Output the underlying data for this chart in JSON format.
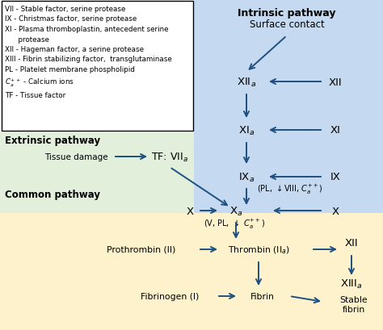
{
  "fig_width": 4.74,
  "fig_height": 4.1,
  "dpi": 100,
  "bg_color": "#ffffff",
  "blue_bg": "#c5d9f1",
  "green_bg": "#e2efda",
  "yellow_bg": "#fdf2cc",
  "arrow_color": "#1f5080",
  "intrinsic_title": "Intrinsic pathway",
  "intrinsic_subtitle": "Surface contact",
  "extrinsic_title": "Extrinsic pathway",
  "common_title": "Common pathway"
}
